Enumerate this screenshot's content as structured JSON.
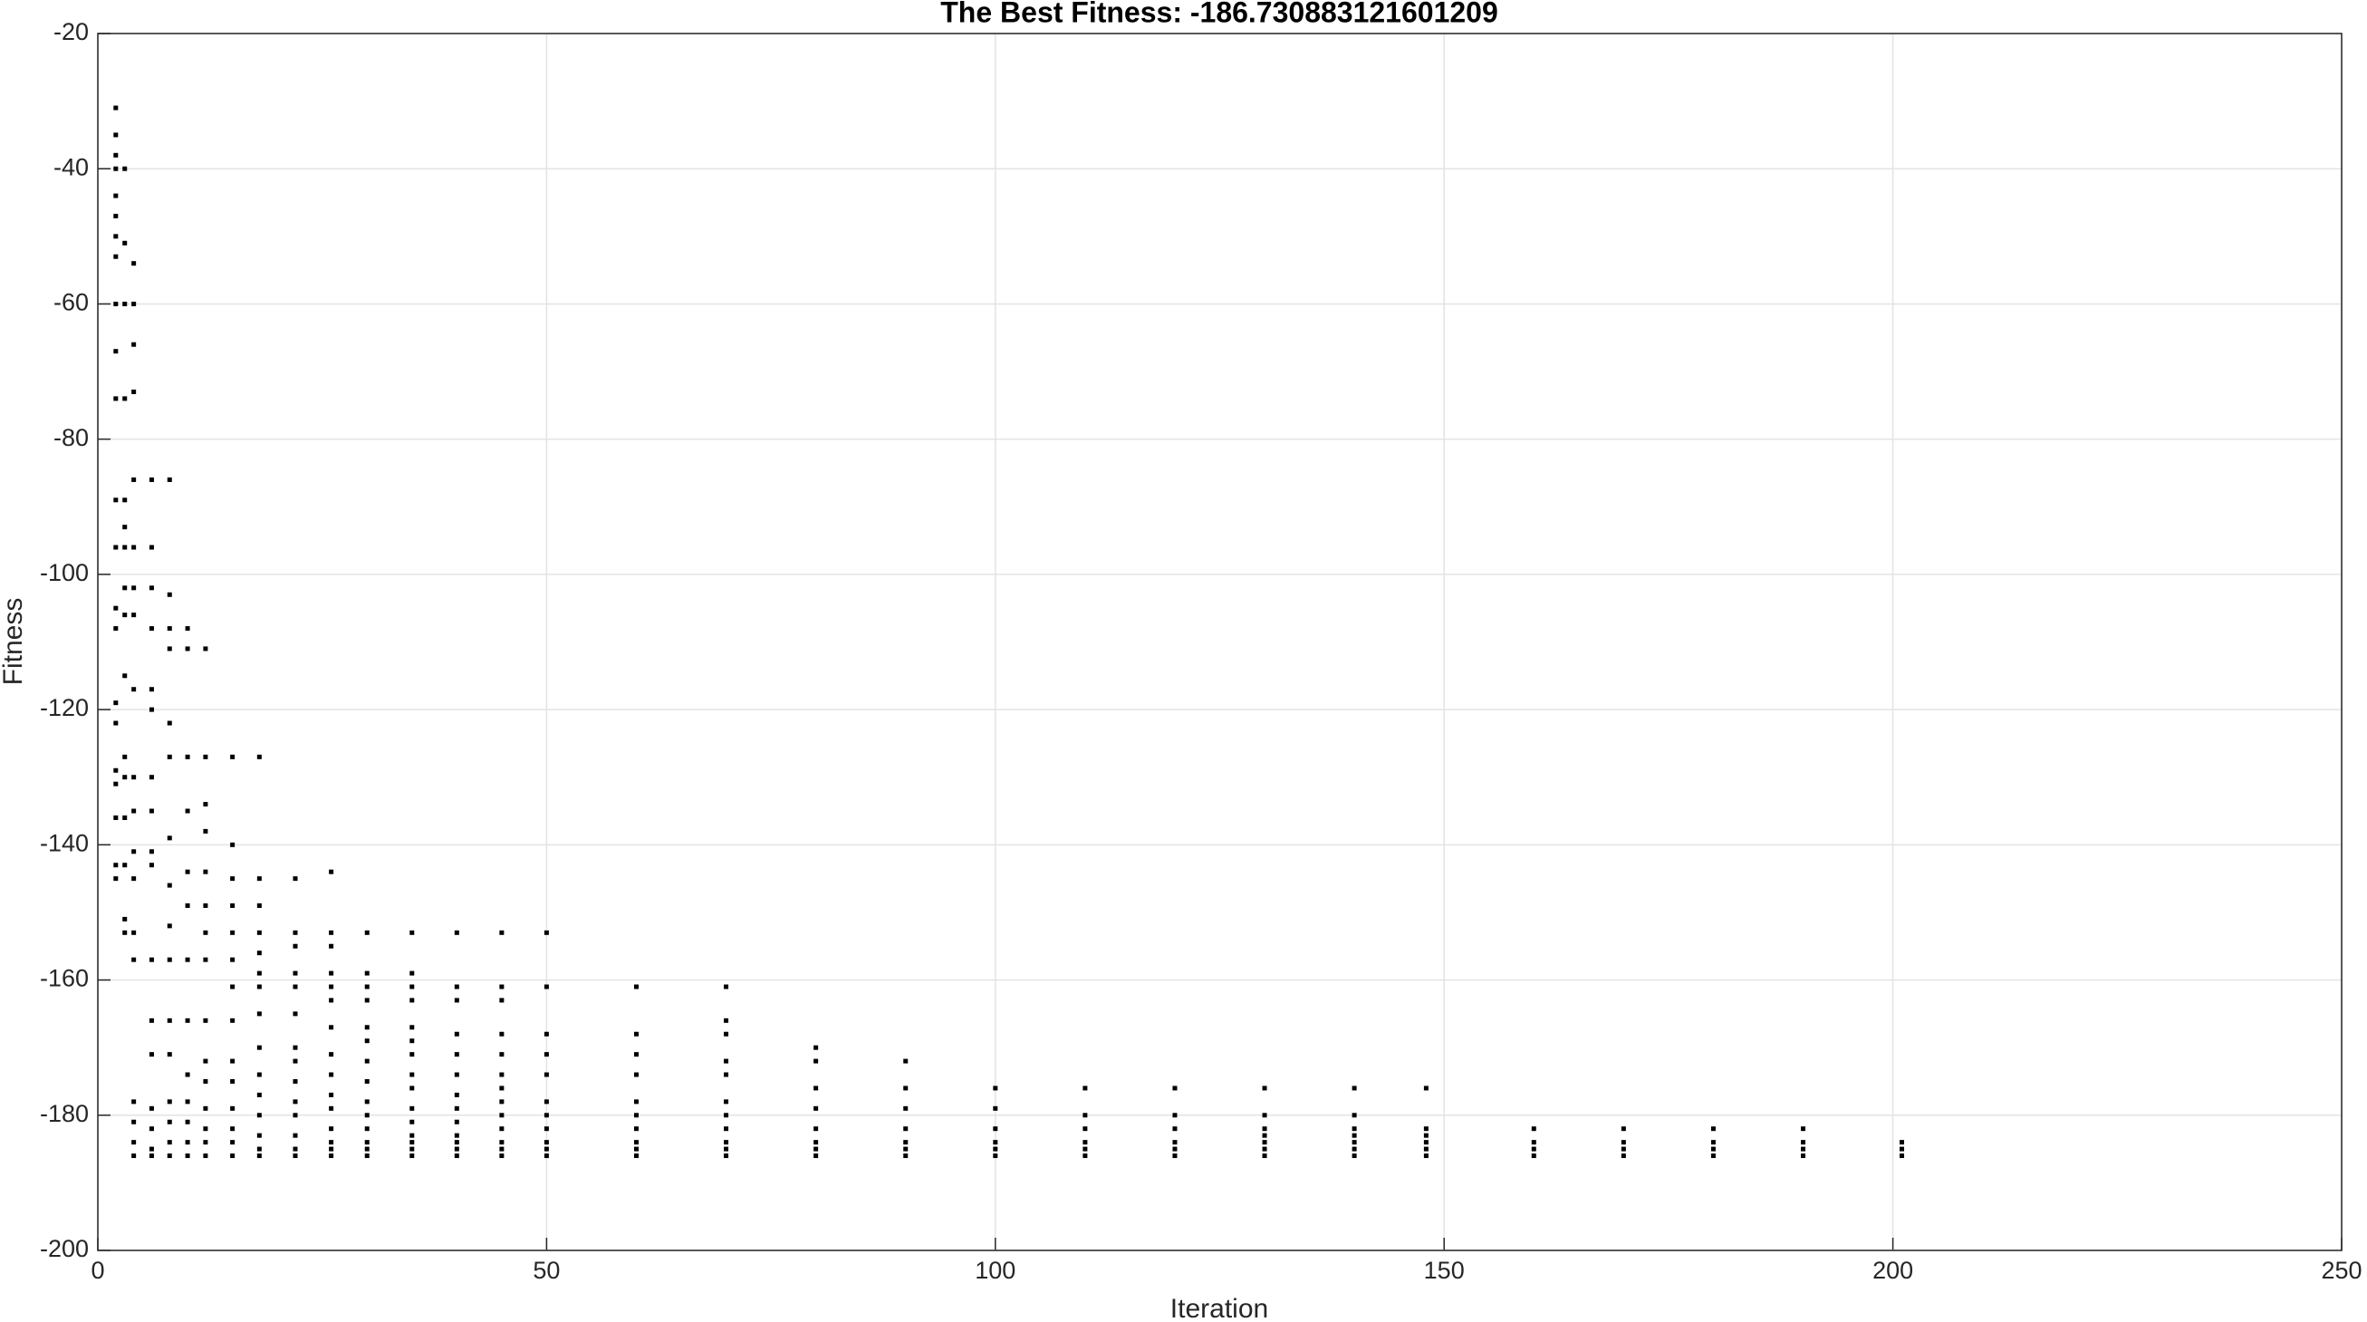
{
  "chart_data": {
    "type": "scatter",
    "title": "The Best Fitness: -186.730883121601209",
    "xlabel": "Iteration",
    "ylabel": "Fitness",
    "color": "#000000",
    "grid": true,
    "xlim": [
      0,
      250
    ],
    "xticks": [
      0,
      50,
      100,
      150,
      200,
      250
    ],
    "ylim": [
      -200,
      -20
    ],
    "yticks": [
      -200,
      -180,
      -160,
      -140,
      -120,
      -100,
      -80,
      -60,
      -40,
      -20
    ],
    "x": [
      2,
      2,
      2,
      2,
      2,
      2,
      2,
      2,
      2,
      2,
      2,
      2,
      2,
      2,
      2,
      2,
      2,
      2,
      2,
      2,
      2,
      2,
      3,
      3,
      3,
      3,
      3,
      3,
      3,
      3,
      3,
      3,
      3,
      3,
      3,
      3,
      3,
      3,
      4,
      4,
      4,
      4,
      4,
      4,
      4,
      4,
      4,
      4,
      4,
      4,
      4,
      4,
      4,
      4,
      4,
      4,
      4,
      6,
      6,
      6,
      6,
      6,
      6,
      6,
      6,
      6,
      6,
      6,
      6,
      6,
      6,
      6,
      6,
      6,
      8,
      8,
      8,
      8,
      8,
      8,
      8,
      8,
      8,
      8,
      8,
      8,
      8,
      8,
      8,
      8,
      10,
      10,
      10,
      10,
      10,
      10,
      10,
      10,
      10,
      10,
      10,
      10,
      10,
      12,
      12,
      12,
      12,
      12,
      12,
      12,
      12,
      12,
      12,
      12,
      12,
      12,
      12,
      12,
      15,
      15,
      15,
      15,
      15,
      15,
      15,
      15,
      15,
      15,
      15,
      15,
      15,
      15,
      18,
      18,
      18,
      18,
      18,
      18,
      18,
      18,
      18,
      18,
      18,
      18,
      18,
      18,
      18,
      22,
      22,
      22,
      22,
      22,
      22,
      22,
      22,
      22,
      22,
      22,
      22,
      22,
      22,
      26,
      26,
      26,
      26,
      26,
      26,
      26,
      26,
      26,
      26,
      26,
      26,
      26,
      26,
      26,
      30,
      30,
      30,
      30,
      30,
      30,
      30,
      30,
      30,
      30,
      30,
      30,
      30,
      30,
      35,
      35,
      35,
      35,
      35,
      35,
      35,
      35,
      35,
      35,
      35,
      35,
      35,
      35,
      35,
      40,
      40,
      40,
      40,
      40,
      40,
      40,
      40,
      40,
      40,
      40,
      40,
      40,
      45,
      45,
      45,
      45,
      45,
      45,
      45,
      45,
      45,
      45,
      45,
      45,
      45,
      50,
      50,
      50,
      50,
      50,
      50,
      50,
      50,
      50,
      50,
      50,
      60,
      60,
      60,
      60,
      60,
      60,
      60,
      60,
      60,
      60,
      70,
      70,
      70,
      70,
      70,
      70,
      70,
      70,
      70,
      70,
      70,
      80,
      80,
      80,
      80,
      80,
      80,
      80,
      80,
      90,
      90,
      90,
      90,
      90,
      90,
      90,
      100,
      100,
      100,
      100,
      100,
      100,
      110,
      110,
      110,
      110,
      110,
      110,
      120,
      120,
      120,
      120,
      120,
      120,
      130,
      130,
      130,
      130,
      130,
      130,
      130,
      140,
      140,
      140,
      140,
      140,
      140,
      140,
      148,
      148,
      148,
      148,
      148,
      148,
      160,
      160,
      160,
      160,
      170,
      170,
      170,
      170,
      180,
      180,
      180,
      180,
      190,
      190,
      190,
      190,
      201,
      201,
      201
    ],
    "values": [
      -31,
      -35,
      -38,
      -40,
      -44,
      -47,
      -50,
      -53,
      -60,
      -67,
      -74,
      -89,
      -96,
      -105,
      -108,
      -119,
      -122,
      -129,
      -131,
      -136,
      -143,
      -145,
      -40,
      -51,
      -60,
      -74,
      -89,
      -93,
      -96,
      -102,
      -106,
      -115,
      -127,
      -130,
      -136,
      -143,
      -151,
      -153,
      -54,
      -60,
      -66,
      -73,
      -86,
      -96,
      -102,
      -106,
      -117,
      -130,
      -135,
      -141,
      -145,
      -153,
      -157,
      -178,
      -181,
      -184,
      -186,
      -86,
      -96,
      -102,
      -108,
      -117,
      -120,
      -130,
      -135,
      -141,
      -143,
      -157,
      -166,
      -171,
      -179,
      -182,
      -185,
      -186,
      -86,
      -103,
      -108,
      -111,
      -122,
      -127,
      -139,
      -146,
      -152,
      -157,
      -166,
      -171,
      -178,
      -181,
      -184,
      -186,
      -108,
      -111,
      -127,
      -135,
      -144,
      -149,
      -157,
      -166,
      -174,
      -178,
      -181,
      -184,
      -186,
      -111,
      -127,
      -134,
      -138,
      -144,
      -149,
      -153,
      -157,
      -166,
      -172,
      -175,
      -179,
      -182,
      -184,
      -186,
      -127,
      -140,
      -145,
      -149,
      -153,
      -157,
      -161,
      -166,
      -172,
      -175,
      -179,
      -182,
      -184,
      -186,
      -127,
      -145,
      -149,
      -153,
      -156,
      -159,
      -161,
      -165,
      -170,
      -174,
      -177,
      -180,
      -183,
      -185,
      -186,
      -145,
      -153,
      -155,
      -159,
      -161,
      -165,
      -170,
      -172,
      -175,
      -178,
      -180,
      -183,
      -185,
      -186,
      -144,
      -153,
      -155,
      -159,
      -161,
      -163,
      -167,
      -171,
      -174,
      -177,
      -179,
      -182,
      -184,
      -185,
      -186,
      -153,
      -159,
      -161,
      -163,
      -167,
      -169,
      -172,
      -175,
      -178,
      -180,
      -182,
      -184,
      -185,
      -186,
      -153,
      -159,
      -161,
      -163,
      -167,
      -169,
      -171,
      -174,
      -176,
      -179,
      -181,
      -183,
      -184,
      -185,
      -186,
      -153,
      -161,
      -163,
      -168,
      -171,
      -174,
      -177,
      -179,
      -181,
      -183,
      -184,
      -185,
      -186,
      -153,
      -161,
      -163,
      -168,
      -171,
      -174,
      -176,
      -178,
      -180,
      -182,
      -184,
      -185,
      -186,
      -153,
      -161,
      -168,
      -171,
      -174,
      -178,
      -180,
      -182,
      -184,
      -185,
      -186,
      -161,
      -168,
      -171,
      -174,
      -178,
      -180,
      -182,
      -184,
      -185,
      -186,
      -161,
      -166,
      -168,
      -172,
      -174,
      -178,
      -180,
      -182,
      -184,
      -185,
      -186,
      -170,
      -172,
      -176,
      -179,
      -182,
      -184,
      -185,
      -186,
      -172,
      -176,
      -179,
      -182,
      -184,
      -185,
      -186,
      -176,
      -179,
      -182,
      -184,
      -185,
      -186,
      -176,
      -180,
      -182,
      -184,
      -185,
      -186,
      -176,
      -180,
      -182,
      -184,
      -185,
      -186,
      -176,
      -180,
      -182,
      -183,
      -184,
      -185,
      -186,
      -176,
      -180,
      -182,
      -183,
      -184,
      -185,
      -186,
      -176,
      -182,
      -183,
      -184,
      -185,
      -186,
      -182,
      -184,
      -185,
      -186,
      -182,
      -184,
      -185,
      -186,
      -182,
      -184,
      -185,
      -186,
      -182,
      -184,
      -185,
      -186,
      -184,
      -185,
      -186
    ]
  }
}
